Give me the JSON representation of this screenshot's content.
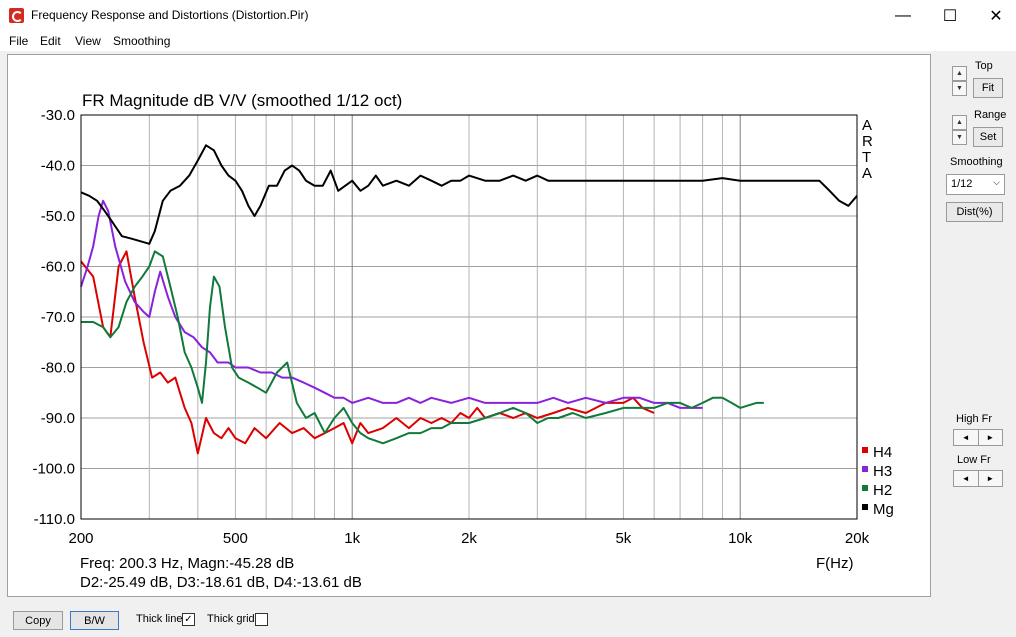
{
  "window": {
    "title": "Frequency Response and Distortions (Distortion.Pir)",
    "minimize_label": "—",
    "maximize_label": "☐",
    "close_label": "✕",
    "icon": "arta-app-icon"
  },
  "menu": {
    "file": "File",
    "edit": "Edit",
    "view": "View",
    "smoothing": "Smoothing"
  },
  "side": {
    "top_label": "Top",
    "fit_label": "Fit",
    "range_label": "Range",
    "set_label": "Set",
    "smoothing_label": "Smoothing",
    "smoothing_value": "1/12",
    "dist_label": "Dist(%)",
    "high_fr_label": "High Fr",
    "low_fr_label": "Low Fr",
    "up_arrow": "▲",
    "down_arrow": "▼",
    "left_arrow": "◄",
    "right_arrow": "►",
    "dropdown_arrow": "⌵"
  },
  "bottom": {
    "copy_label": "Copy",
    "bw_label": "B/W",
    "thick_line_label": "Thick line",
    "thick_line_checked": true,
    "thick_grid_label": "Thick grid",
    "thick_grid_checked": false,
    "check_mark": "✓"
  },
  "chart_data": {
    "type": "line",
    "title": "FR Magnitude dB V/V (smoothed 1/12 oct)",
    "xlabel": "F(Hz)",
    "ylabel": "",
    "x_scale": "log",
    "xlim": [
      200,
      20000
    ],
    "ylim": [
      -110,
      -30
    ],
    "grid": true,
    "y_ticks": [
      "-30.0",
      "-40.0",
      "-50.0",
      "-60.0",
      "-70.0",
      "-80.0",
      "-90.0",
      "-100.0",
      "-110.0"
    ],
    "x_ticks": [
      {
        "value": 200,
        "label": "200"
      },
      {
        "value": 500,
        "label": "500"
      },
      {
        "value": 1000,
        "label": "1k"
      },
      {
        "value": 2000,
        "label": "2k"
      },
      {
        "value": 5000,
        "label": "5k"
      },
      {
        "value": 10000,
        "label": "10k"
      },
      {
        "value": 20000,
        "label": "20k"
      }
    ],
    "side_text": [
      "A",
      "R",
      "T",
      "A"
    ],
    "legend_position": "bottom-right",
    "readout_line1": "Freq: 200.3 Hz, Magn:-45.28 dB",
    "readout_line2": "D2:-25.49 dB, D3:-18.61 dB, D4:-13.61 dB",
    "series": [
      {
        "name": "H4",
        "color": "#dd0000",
        "points": [
          [
            200,
            -59
          ],
          [
            215,
            -62
          ],
          [
            228,
            -72
          ],
          [
            238,
            -74
          ],
          [
            250,
            -60
          ],
          [
            262,
            -57
          ],
          [
            275,
            -66
          ],
          [
            290,
            -75
          ],
          [
            305,
            -82
          ],
          [
            320,
            -81
          ],
          [
            335,
            -83
          ],
          [
            350,
            -82
          ],
          [
            370,
            -88
          ],
          [
            385,
            -91
          ],
          [
            400,
            -97
          ],
          [
            420,
            -90
          ],
          [
            440,
            -93
          ],
          [
            460,
            -94
          ],
          [
            480,
            -92
          ],
          [
            500,
            -94
          ],
          [
            530,
            -95
          ],
          [
            560,
            -92
          ],
          [
            600,
            -94
          ],
          [
            650,
            -91
          ],
          [
            700,
            -93
          ],
          [
            750,
            -92
          ],
          [
            800,
            -94
          ],
          [
            850,
            -93
          ],
          [
            900,
            -92
          ],
          [
            950,
            -91
          ],
          [
            1000,
            -95
          ],
          [
            1050,
            -91
          ],
          [
            1100,
            -93
          ],
          [
            1200,
            -92
          ],
          [
            1300,
            -90
          ],
          [
            1400,
            -92
          ],
          [
            1500,
            -90
          ],
          [
            1600,
            -91
          ],
          [
            1700,
            -90
          ],
          [
            1800,
            -91
          ],
          [
            1900,
            -89
          ],
          [
            2000,
            -90
          ],
          [
            2100,
            -88
          ],
          [
            2200,
            -90
          ],
          [
            2400,
            -89
          ],
          [
            2600,
            -90
          ],
          [
            2800,
            -89
          ],
          [
            3000,
            -90
          ],
          [
            3300,
            -89
          ],
          [
            3600,
            -88
          ],
          [
            4000,
            -89
          ],
          [
            4500,
            -87
          ],
          [
            5000,
            -87
          ],
          [
            5300,
            -86
          ],
          [
            5600,
            -88
          ],
          [
            6000,
            -89
          ]
        ]
      },
      {
        "name": "H3",
        "color": "#8822dd",
        "points": [
          [
            200,
            -64
          ],
          [
            208,
            -60
          ],
          [
            215,
            -56
          ],
          [
            222,
            -50
          ],
          [
            228,
            -47
          ],
          [
            235,
            -49
          ],
          [
            245,
            -56
          ],
          [
            260,
            -63
          ],
          [
            275,
            -67
          ],
          [
            290,
            -69
          ],
          [
            300,
            -70
          ],
          [
            310,
            -65
          ],
          [
            320,
            -61
          ],
          [
            335,
            -66
          ],
          [
            350,
            -70
          ],
          [
            370,
            -73
          ],
          [
            390,
            -74
          ],
          [
            410,
            -76
          ],
          [
            430,
            -77
          ],
          [
            450,
            -79
          ],
          [
            480,
            -79
          ],
          [
            500,
            -80
          ],
          [
            540,
            -80
          ],
          [
            580,
            -81
          ],
          [
            620,
            -81
          ],
          [
            660,
            -82
          ],
          [
            700,
            -82
          ],
          [
            750,
            -83
          ],
          [
            800,
            -84
          ],
          [
            850,
            -85
          ],
          [
            900,
            -86
          ],
          [
            950,
            -86
          ],
          [
            1000,
            -87
          ],
          [
            1100,
            -86
          ],
          [
            1200,
            -87
          ],
          [
            1300,
            -87
          ],
          [
            1400,
            -86
          ],
          [
            1500,
            -87
          ],
          [
            1600,
            -86
          ],
          [
            1800,
            -87
          ],
          [
            2000,
            -86
          ],
          [
            2200,
            -87
          ],
          [
            2500,
            -87
          ],
          [
            2800,
            -87
          ],
          [
            3000,
            -87
          ],
          [
            3300,
            -86
          ],
          [
            3600,
            -87
          ],
          [
            4000,
            -86
          ],
          [
            4500,
            -87
          ],
          [
            5000,
            -86
          ],
          [
            5500,
            -86
          ],
          [
            6000,
            -87
          ],
          [
            6500,
            -87
          ],
          [
            7000,
            -88
          ],
          [
            7500,
            -88
          ],
          [
            8000,
            -88
          ]
        ]
      },
      {
        "name": "H2",
        "color": "#117a3a",
        "points": [
          [
            200,
            -71
          ],
          [
            215,
            -71
          ],
          [
            228,
            -72
          ],
          [
            238,
            -74
          ],
          [
            250,
            -72
          ],
          [
            262,
            -67
          ],
          [
            275,
            -64
          ],
          [
            288,
            -62
          ],
          [
            300,
            -60
          ],
          [
            310,
            -57
          ],
          [
            325,
            -58
          ],
          [
            340,
            -64
          ],
          [
            355,
            -70
          ],
          [
            370,
            -77
          ],
          [
            385,
            -80
          ],
          [
            400,
            -84
          ],
          [
            410,
            -87
          ],
          [
            420,
            -79
          ],
          [
            430,
            -68
          ],
          [
            440,
            -62
          ],
          [
            455,
            -64
          ],
          [
            470,
            -72
          ],
          [
            490,
            -80
          ],
          [
            510,
            -82
          ],
          [
            540,
            -83
          ],
          [
            570,
            -84
          ],
          [
            600,
            -85
          ],
          [
            640,
            -81
          ],
          [
            680,
            -79
          ],
          [
            720,
            -87
          ],
          [
            760,
            -90
          ],
          [
            800,
            -89
          ],
          [
            850,
            -93
          ],
          [
            900,
            -90
          ],
          [
            950,
            -88
          ],
          [
            1000,
            -91
          ],
          [
            1050,
            -93
          ],
          [
            1100,
            -94
          ],
          [
            1200,
            -95
          ],
          [
            1300,
            -94
          ],
          [
            1400,
            -93
          ],
          [
            1500,
            -93
          ],
          [
            1600,
            -92
          ],
          [
            1700,
            -92
          ],
          [
            1800,
            -91
          ],
          [
            2000,
            -91
          ],
          [
            2200,
            -90
          ],
          [
            2400,
            -89
          ],
          [
            2600,
            -88
          ],
          [
            2800,
            -89
          ],
          [
            3000,
            -91
          ],
          [
            3200,
            -90
          ],
          [
            3400,
            -90
          ],
          [
            3700,
            -89
          ],
          [
            4000,
            -90
          ],
          [
            4500,
            -89
          ],
          [
            5000,
            -88
          ],
          [
            5500,
            -88
          ],
          [
            6000,
            -88
          ],
          [
            6500,
            -87
          ],
          [
            7000,
            -87
          ],
          [
            7500,
            -88
          ],
          [
            8000,
            -87
          ],
          [
            8500,
            -86
          ],
          [
            9000,
            -86
          ],
          [
            9500,
            -87
          ],
          [
            10000,
            -88
          ],
          [
            11000,
            -87
          ],
          [
            11500,
            -87
          ]
        ]
      },
      {
        "name": "Mg",
        "color": "#000000",
        "points": [
          [
            200,
            -45.3
          ],
          [
            210,
            -46
          ],
          [
            220,
            -47
          ],
          [
            230,
            -49
          ],
          [
            240,
            -51
          ],
          [
            255,
            -54
          ],
          [
            270,
            -54.5
          ],
          [
            285,
            -55
          ],
          [
            300,
            -55.5
          ],
          [
            310,
            -53
          ],
          [
            325,
            -47
          ],
          [
            340,
            -45
          ],
          [
            360,
            -44
          ],
          [
            380,
            -42
          ],
          [
            400,
            -39
          ],
          [
            420,
            -36
          ],
          [
            440,
            -37
          ],
          [
            460,
            -40
          ],
          [
            480,
            -42
          ],
          [
            500,
            -43
          ],
          [
            520,
            -45
          ],
          [
            540,
            -48
          ],
          [
            560,
            -50
          ],
          [
            580,
            -48
          ],
          [
            610,
            -44
          ],
          [
            640,
            -44
          ],
          [
            670,
            -41
          ],
          [
            700,
            -40
          ],
          [
            730,
            -41
          ],
          [
            760,
            -43
          ],
          [
            800,
            -44
          ],
          [
            840,
            -44
          ],
          [
            880,
            -41
          ],
          [
            920,
            -45
          ],
          [
            960,
            -44
          ],
          [
            1000,
            -43
          ],
          [
            1050,
            -45
          ],
          [
            1100,
            -44
          ],
          [
            1150,
            -42
          ],
          [
            1200,
            -44
          ],
          [
            1300,
            -43
          ],
          [
            1400,
            -44
          ],
          [
            1500,
            -42
          ],
          [
            1600,
            -43
          ],
          [
            1700,
            -44
          ],
          [
            1800,
            -43
          ],
          [
            1900,
            -43
          ],
          [
            2000,
            -42
          ],
          [
            2200,
            -43
          ],
          [
            2400,
            -43
          ],
          [
            2600,
            -42
          ],
          [
            2800,
            -43
          ],
          [
            3000,
            -42
          ],
          [
            3200,
            -43
          ],
          [
            3500,
            -43
          ],
          [
            4000,
            -43
          ],
          [
            4500,
            -43
          ],
          [
            5000,
            -43
          ],
          [
            5500,
            -43
          ],
          [
            6000,
            -43
          ],
          [
            7000,
            -43
          ],
          [
            8000,
            -43
          ],
          [
            9000,
            -42.5
          ],
          [
            10000,
            -43
          ],
          [
            11000,
            -43
          ],
          [
            12000,
            -43
          ],
          [
            13000,
            -43
          ],
          [
            14000,
            -43
          ],
          [
            15000,
            -43
          ],
          [
            16000,
            -43
          ],
          [
            17000,
            -45
          ],
          [
            18000,
            -47
          ],
          [
            19000,
            -48
          ],
          [
            20000,
            -46
          ]
        ]
      }
    ]
  }
}
